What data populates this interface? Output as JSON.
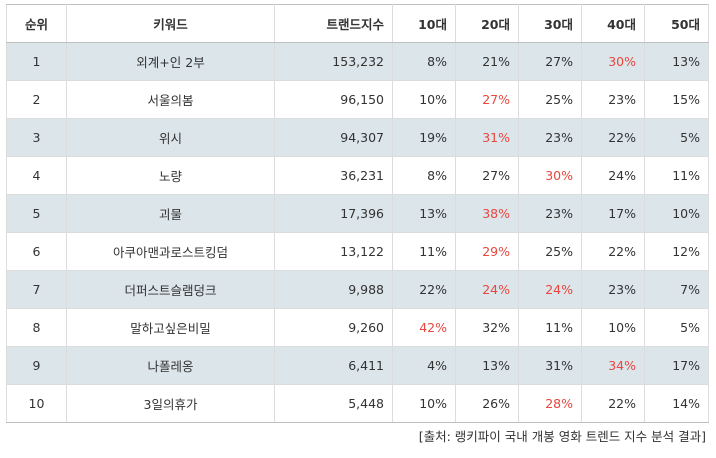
{
  "table": {
    "headers": [
      "순위",
      "키워드",
      "트랜드지수",
      "10대",
      "20대",
      "30대",
      "40대",
      "50대"
    ],
    "rows": [
      {
        "rank": "1",
        "keyword": "외계+인 2부",
        "index": "153,232",
        "a10": "8%",
        "a20": "21%",
        "a30": "27%",
        "a40": "30%",
        "a50": "13%",
        "hot": "a40"
      },
      {
        "rank": "2",
        "keyword": "서울의봄",
        "index": "96,150",
        "a10": "10%",
        "a20": "27%",
        "a30": "25%",
        "a40": "23%",
        "a50": "15%",
        "hot": "a20"
      },
      {
        "rank": "3",
        "keyword": "위시",
        "index": "94,307",
        "a10": "19%",
        "a20": "31%",
        "a30": "23%",
        "a40": "22%",
        "a50": "5%",
        "hot": "a20"
      },
      {
        "rank": "4",
        "keyword": "노량",
        "index": "36,231",
        "a10": "8%",
        "a20": "27%",
        "a30": "30%",
        "a40": "24%",
        "a50": "11%",
        "hot": "a30"
      },
      {
        "rank": "5",
        "keyword": "괴물",
        "index": "17,396",
        "a10": "13%",
        "a20": "38%",
        "a30": "23%",
        "a40": "17%",
        "a50": "10%",
        "hot": "a20"
      },
      {
        "rank": "6",
        "keyword": "아쿠아맨과로스트킹덤",
        "index": "13,122",
        "a10": "11%",
        "a20": "29%",
        "a30": "25%",
        "a40": "22%",
        "a50": "12%",
        "hot": "a20"
      },
      {
        "rank": "7",
        "keyword": "더퍼스트슬램덩크",
        "index": "9,988",
        "a10": "22%",
        "a20": "24%",
        "a30": "24%",
        "a40": "23%",
        "a50": "7%",
        "hot": "a20,a30"
      },
      {
        "rank": "8",
        "keyword": "말하고싶은비밀",
        "index": "9,260",
        "a10": "42%",
        "a20": "32%",
        "a30": "11%",
        "a40": "10%",
        "a50": "5%",
        "hot": "a10"
      },
      {
        "rank": "9",
        "keyword": "나폴레옹",
        "index": "6,411",
        "a10": "4%",
        "a20": "13%",
        "a30": "31%",
        "a40": "34%",
        "a50": "17%",
        "hot": "a40"
      },
      {
        "rank": "10",
        "keyword": "3일의휴가",
        "index": "5,448",
        "a10": "10%",
        "a20": "26%",
        "a30": "28%",
        "a40": "22%",
        "a50": "14%",
        "hot": "a30"
      }
    ]
  },
  "source": "[출처: 랭키파이 국내 개봉 영화 트렌드 지수 분석 결과]",
  "colors": {
    "highlight": "#e8463f",
    "stripe": "#dbe5ea"
  }
}
